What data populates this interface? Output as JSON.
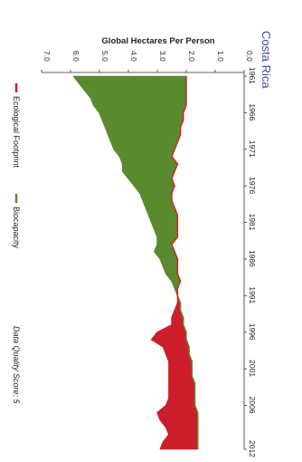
{
  "page": {
    "country": "Costa Rica",
    "quality_label": "Data Quality Score: 5"
  },
  "chart_data": {
    "type": "area",
    "title": "",
    "ylabel": "Global Hectares Per Person",
    "xlabel": "",
    "orientation": "rotated-90-clockwise",
    "ylim": [
      0,
      7
    ],
    "y_ticks": [
      "0.0",
      "1.0",
      "2.0",
      "3.0",
      "4.0",
      "5.0",
      "6.0",
      "7.0"
    ],
    "x_ticks": [
      "1961",
      "1966",
      "1971",
      "1976",
      "1981",
      "1986",
      "1991",
      "1996",
      "2001",
      "2006",
      "2012"
    ],
    "x": [
      1961,
      1962,
      1963,
      1964,
      1965,
      1966,
      1967,
      1968,
      1969,
      1970,
      1971,
      1972,
      1973,
      1974,
      1975,
      1976,
      1977,
      1978,
      1979,
      1980,
      1981,
      1982,
      1983,
      1984,
      1985,
      1986,
      1987,
      1988,
      1989,
      1990,
      1991,
      1992,
      1993,
      1994,
      1995,
      1996,
      1997,
      1998,
      1999,
      2000,
      2001,
      2002,
      2003,
      2004,
      2005,
      2006,
      2007,
      2008,
      2009,
      2010,
      2011,
      2012
    ],
    "series": [
      {
        "name": "Ecological Footprint",
        "color": "#cc1f2b",
        "values": [
          2.0,
          2.0,
          2.0,
          2.0,
          2.0,
          2.1,
          2.1,
          2.2,
          2.2,
          2.3,
          2.4,
          2.5,
          2.3,
          2.4,
          2.5,
          2.4,
          2.5,
          2.5,
          2.4,
          2.3,
          2.3,
          2.3,
          2.3,
          2.5,
          2.4,
          2.3,
          2.3,
          2.3,
          2.2,
          2.3,
          2.3,
          2.3,
          2.4,
          2.5,
          2.5,
          3.0,
          3.2,
          2.8,
          2.7,
          2.6,
          2.6,
          2.6,
          2.6,
          2.6,
          2.6,
          2.7,
          3.0,
          2.9,
          2.7,
          2.6,
          2.8,
          2.9
        ]
      },
      {
        "name": "Biocapacity",
        "color": "#5a8a2e",
        "values": [
          5.9,
          5.7,
          5.5,
          5.3,
          5.2,
          5.0,
          4.9,
          4.8,
          4.7,
          4.6,
          4.5,
          4.3,
          4.2,
          4.2,
          4.0,
          3.8,
          3.6,
          3.5,
          3.4,
          3.3,
          3.2,
          3.1,
          3.0,
          3.0,
          3.1,
          2.9,
          2.8,
          2.7,
          2.5,
          2.4,
          2.3,
          2.2,
          2.2,
          2.1,
          2.1,
          2.0,
          2.0,
          1.9,
          1.9,
          1.8,
          1.8,
          1.8,
          1.7,
          1.7,
          1.7,
          1.7,
          1.6,
          1.6,
          1.6,
          1.6,
          1.6,
          1.6
        ]
      }
    ],
    "legend_position": "bottom"
  }
}
